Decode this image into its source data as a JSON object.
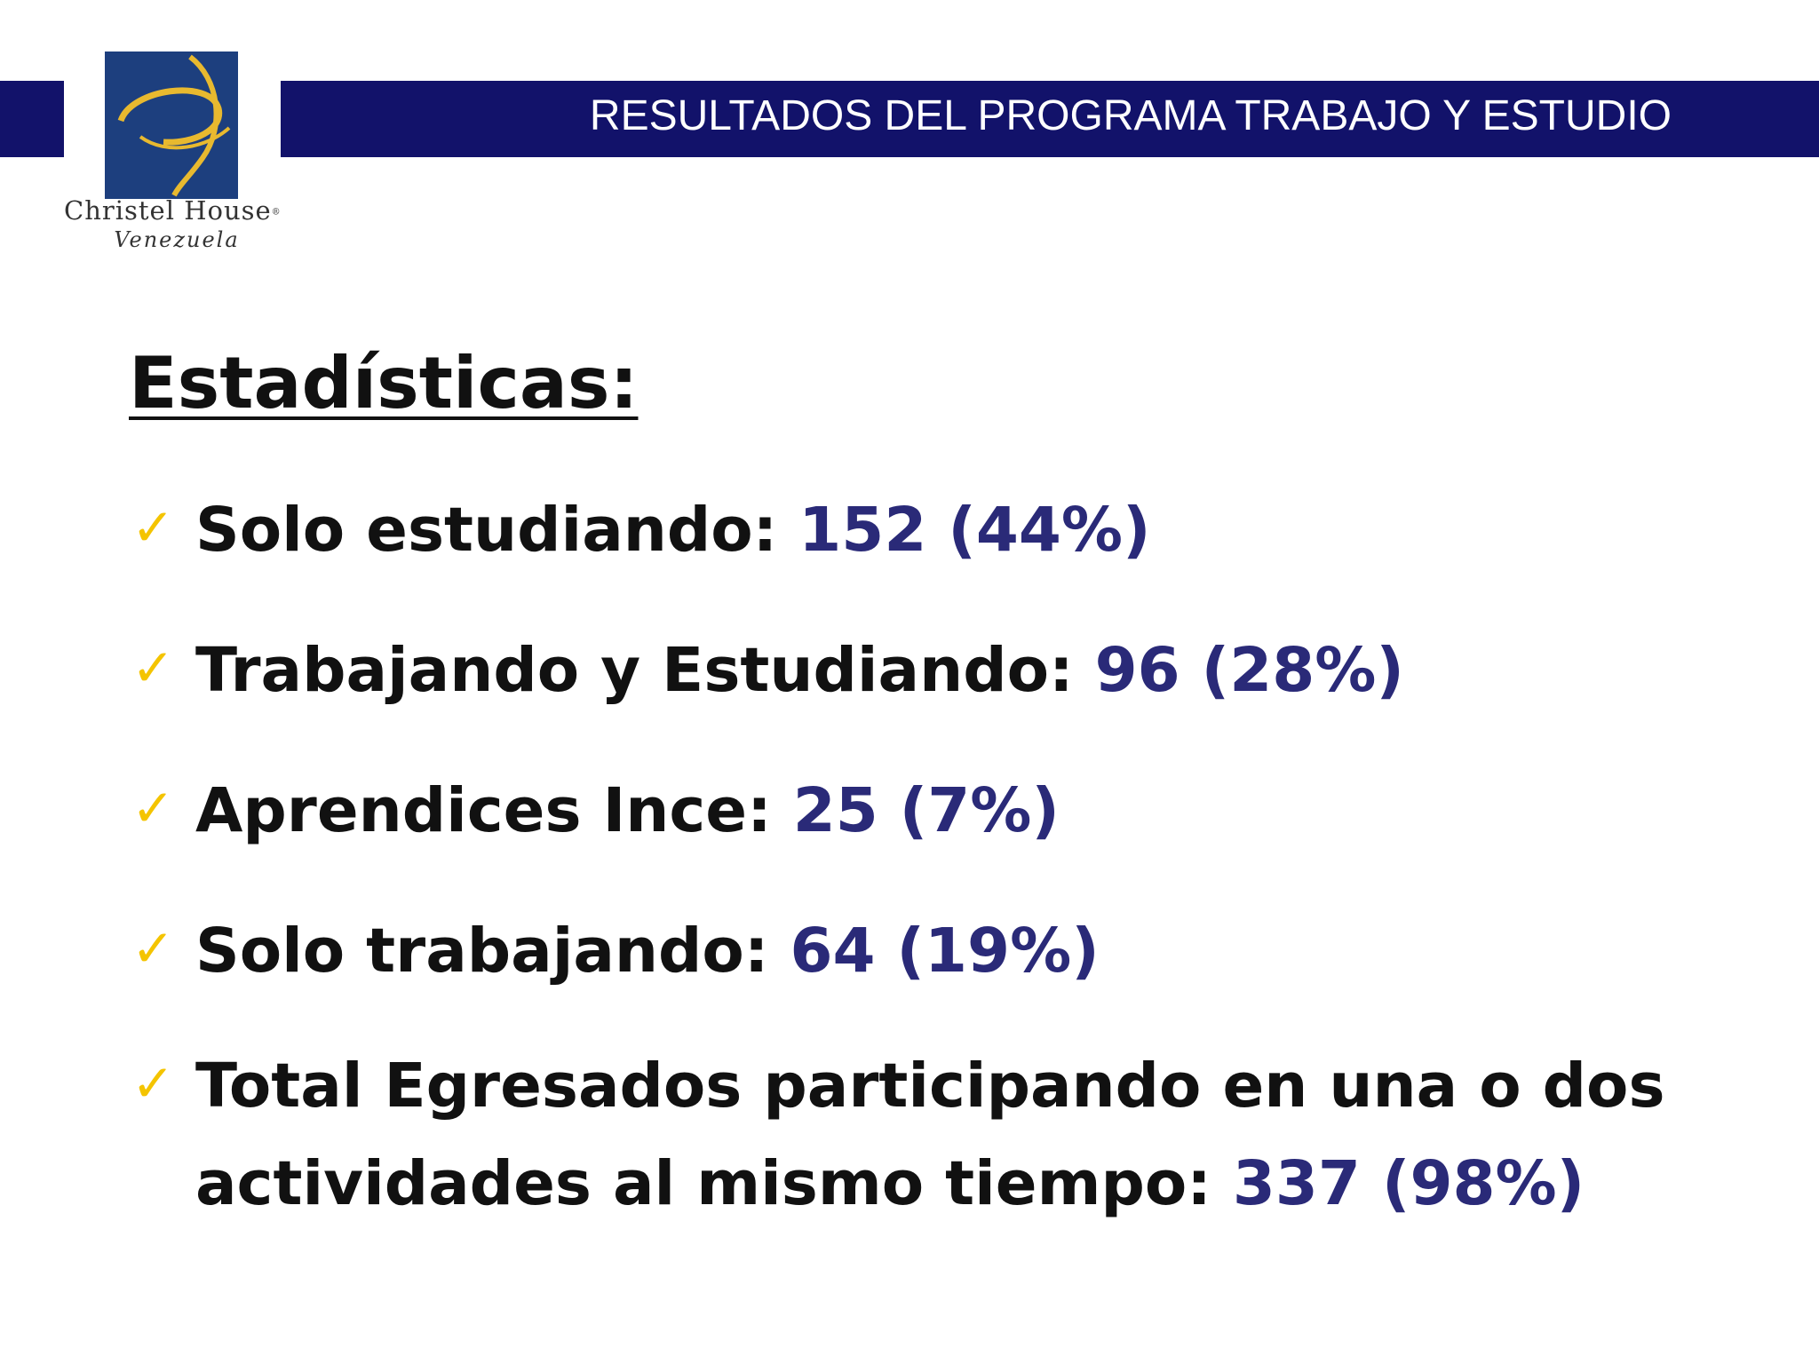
{
  "header": {
    "title": "RESULTADOS DEL PROGRAMA TRABAJO Y ESTUDIO"
  },
  "logo": {
    "name": "Christel House",
    "registered_mark": "®",
    "subtitle": "Venezuela",
    "square_color": "#1d3f7e",
    "swoosh_color": "#e8b92f"
  },
  "section": {
    "title": "Estadísticas:"
  },
  "bullet_icon": "checkmark-icon",
  "stats": [
    {
      "label": "Solo estudiando:",
      "value": "152 (44%)"
    },
    {
      "label": "Trabajando y Estudiando:",
      "value": "96 (28%)"
    },
    {
      "label": "Aprendices Ince:",
      "value": "25 (7%)"
    },
    {
      "label": "Solo trabajando:",
      "value": "64 (19%)"
    },
    {
      "label_line1": "Total Egresados participando en una o dos",
      "label_line2": "actividades al mismo tiempo:",
      "value": "337 (98%)"
    }
  ],
  "colors": {
    "header_bar": "#12126a",
    "value_text": "#2a2a78",
    "check": "#f4c400"
  }
}
